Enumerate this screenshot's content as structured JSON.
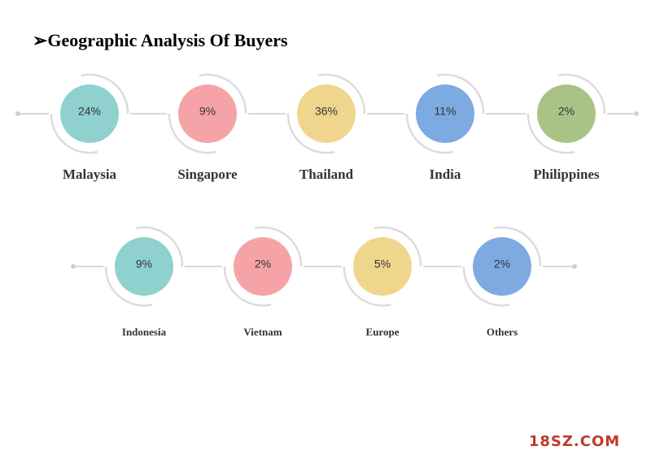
{
  "header": {
    "title": "➢Geographic Analysis Of Buyers"
  },
  "rows": [
    {
      "items": [
        {
          "label": "Malaysia",
          "value": "24%"
        },
        {
          "label": "Singapore",
          "value": "9%"
        },
        {
          "label": "Thailand",
          "value": "36%"
        },
        {
          "label": "India",
          "value": "11%"
        },
        {
          "label": "Philippines",
          "value": "2%"
        }
      ]
    },
    {
      "items": [
        {
          "label": "Indonesia",
          "value": "9%"
        },
        {
          "label": "Vietnam",
          "value": "2%"
        },
        {
          "label": "Europe",
          "value": "5%"
        },
        {
          "label": "Others",
          "value": "2%"
        }
      ]
    }
  ],
  "watermark": "18SZ.COM"
}
